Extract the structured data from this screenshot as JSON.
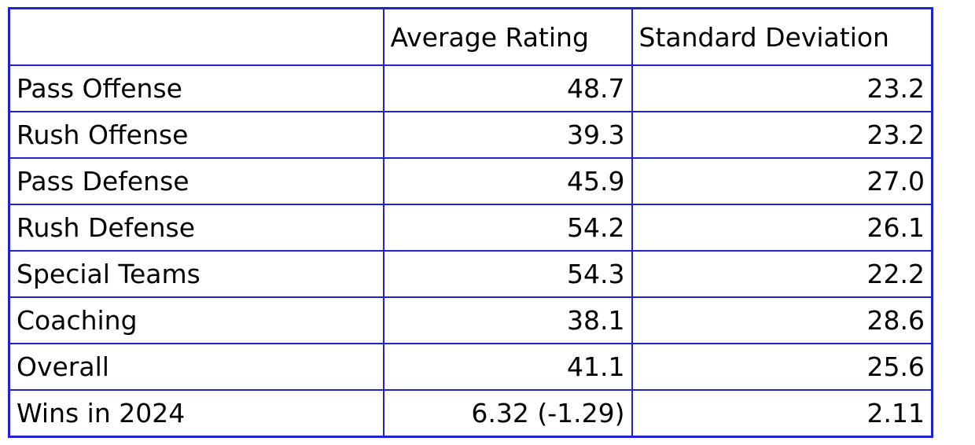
{
  "table": {
    "header": [
      "Average Rating",
      "Standard Deviation"
    ],
    "rows": [
      [
        "Pass Offense",
        "48.7",
        "23.2"
      ],
      [
        "Rush Offense",
        "39.3",
        "23.2"
      ],
      [
        "Pass Defense",
        "45.9",
        "27.0"
      ],
      [
        "Rush Defense",
        "54.2",
        "26.1"
      ],
      [
        "Special Teams",
        "54.3",
        "22.2"
      ],
      [
        "Coaching",
        "38.1",
        "28.6"
      ],
      [
        "Overall",
        "41.1",
        "25.6"
      ],
      [
        "Wins in 2024",
        "6.32 (-1.29)",
        "2.11"
      ]
    ]
  }
}
